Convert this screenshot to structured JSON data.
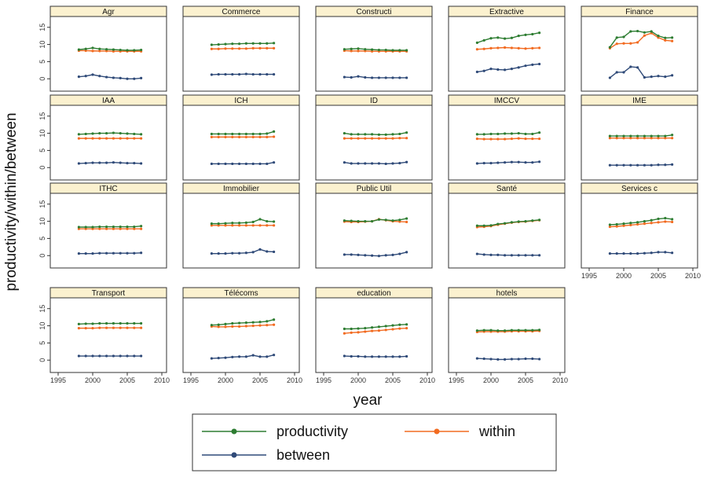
{
  "chart_data": {
    "type": "line",
    "layout": "small-multiples",
    "ylabel": "productivity/within/between",
    "xlabel": "year",
    "xlim": [
      1995,
      2010
    ],
    "ylim": [
      -2,
      17
    ],
    "x_ticks": [
      "1995",
      "2000",
      "2005",
      "2010"
    ],
    "y_ticks": [
      "0",
      "5",
      "10",
      "15"
    ],
    "x": [
      1998,
      1999,
      2000,
      2001,
      2002,
      2003,
      2004,
      2005,
      2006,
      2007
    ],
    "legend": {
      "placement": "bottom",
      "entries": [
        "productivity",
        "within",
        "between"
      ]
    },
    "series_colors": {
      "productivity": "#2e7d32",
      "within": "#f26b21",
      "between": "#2f4a78"
    },
    "colors": {
      "panel_header": "#fbf1cf",
      "panel_border": "#333333"
    },
    "panels": [
      {
        "title": "Agr",
        "productivity": [
          8.5,
          8.7,
          9.0,
          8.7,
          8.6,
          8.5,
          8.4,
          8.3,
          8.3,
          8.4
        ],
        "within": [
          8.2,
          8.2,
          8.1,
          8.1,
          8.1,
          8.0,
          8.0,
          8.0,
          8.0,
          8.0
        ],
        "between": [
          0.6,
          0.8,
          1.2,
          0.8,
          0.5,
          0.3,
          0.2,
          0.0,
          0.0,
          0.2
        ]
      },
      {
        "title": "Commerce",
        "productivity": [
          9.9,
          10.0,
          10.1,
          10.2,
          10.2,
          10.3,
          10.3,
          10.3,
          10.3,
          10.4
        ],
        "within": [
          8.7,
          8.7,
          8.8,
          8.8,
          8.8,
          8.8,
          8.9,
          8.9,
          8.9,
          8.9
        ],
        "between": [
          1.2,
          1.3,
          1.3,
          1.3,
          1.3,
          1.4,
          1.3,
          1.3,
          1.3,
          1.3
        ]
      },
      {
        "title": "Constructi",
        "productivity": [
          8.6,
          8.7,
          8.8,
          8.6,
          8.5,
          8.4,
          8.4,
          8.3,
          8.3,
          8.3
        ],
        "within": [
          8.2,
          8.1,
          8.1,
          8.1,
          8.0,
          8.0,
          8.0,
          8.0,
          8.0,
          8.0
        ],
        "between": [
          0.5,
          0.4,
          0.7,
          0.4,
          0.3,
          0.3,
          0.3,
          0.3,
          0.3,
          0.3
        ]
      },
      {
        "title": "Extractive",
        "productivity": [
          10.5,
          11.2,
          11.8,
          12.0,
          11.7,
          11.9,
          12.5,
          12.8,
          13.0,
          13.4
        ],
        "within": [
          8.6,
          8.7,
          8.9,
          9.0,
          9.1,
          9.0,
          8.9,
          8.8,
          8.9,
          9.0
        ],
        "between": [
          2.0,
          2.3,
          2.9,
          2.7,
          2.6,
          2.9,
          3.3,
          3.8,
          4.1,
          4.3
        ]
      },
      {
        "title": "Finance",
        "productivity": [
          9.2,
          12.0,
          12.2,
          13.8,
          13.9,
          13.5,
          13.8,
          12.5,
          11.9,
          12.0
        ],
        "within": [
          8.9,
          10.2,
          10.3,
          10.3,
          10.6,
          12.6,
          13.3,
          12.0,
          11.2,
          11.0
        ],
        "between": [
          0.3,
          1.9,
          1.9,
          3.5,
          3.3,
          0.4,
          0.6,
          0.8,
          0.6,
          1.0
        ]
      },
      {
        "title": "IAA",
        "productivity": [
          9.7,
          9.8,
          9.9,
          10.0,
          10.0,
          10.1,
          10.0,
          9.9,
          9.8,
          9.7
        ],
        "within": [
          8.5,
          8.5,
          8.5,
          8.5,
          8.5,
          8.5,
          8.5,
          8.5,
          8.5,
          8.5
        ],
        "between": [
          1.2,
          1.3,
          1.4,
          1.4,
          1.4,
          1.5,
          1.4,
          1.3,
          1.3,
          1.2
        ]
      },
      {
        "title": "ICH",
        "productivity": [
          9.8,
          9.8,
          9.8,
          9.8,
          9.8,
          9.8,
          9.8,
          9.8,
          9.9,
          10.5
        ],
        "within": [
          8.9,
          8.9,
          8.9,
          8.9,
          8.9,
          8.9,
          8.9,
          8.9,
          8.9,
          9.0
        ],
        "between": [
          1.1,
          1.1,
          1.1,
          1.1,
          1.1,
          1.1,
          1.1,
          1.1,
          1.1,
          1.5
        ]
      },
      {
        "title": "ID",
        "productivity": [
          10.0,
          9.7,
          9.7,
          9.7,
          9.7,
          9.6,
          9.6,
          9.7,
          9.8,
          10.2
        ],
        "within": [
          8.5,
          8.5,
          8.5,
          8.5,
          8.5,
          8.5,
          8.5,
          8.5,
          8.6,
          8.6
        ],
        "between": [
          1.5,
          1.2,
          1.2,
          1.2,
          1.2,
          1.2,
          1.1,
          1.2,
          1.3,
          1.6
        ]
      },
      {
        "title": "IMCCV",
        "productivity": [
          9.7,
          9.7,
          9.8,
          9.8,
          9.9,
          9.9,
          10.0,
          9.8,
          9.8,
          10.2
        ],
        "within": [
          8.4,
          8.3,
          8.3,
          8.3,
          8.3,
          8.4,
          8.5,
          8.4,
          8.4,
          8.4
        ],
        "between": [
          1.2,
          1.3,
          1.3,
          1.4,
          1.5,
          1.6,
          1.6,
          1.5,
          1.5,
          1.7
        ]
      },
      {
        "title": "IME",
        "productivity": [
          9.2,
          9.2,
          9.2,
          9.2,
          9.2,
          9.2,
          9.2,
          9.2,
          9.2,
          9.5
        ],
        "within": [
          8.6,
          8.6,
          8.6,
          8.6,
          8.6,
          8.6,
          8.6,
          8.6,
          8.6,
          8.6
        ],
        "between": [
          0.7,
          0.7,
          0.7,
          0.7,
          0.7,
          0.7,
          0.7,
          0.8,
          0.8,
          0.9
        ]
      },
      {
        "title": "ITHC",
        "productivity": [
          8.3,
          8.3,
          8.3,
          8.4,
          8.4,
          8.4,
          8.4,
          8.4,
          8.4,
          8.6
        ],
        "within": [
          7.8,
          7.8,
          7.8,
          7.8,
          7.8,
          7.8,
          7.8,
          7.8,
          7.8,
          7.8
        ],
        "between": [
          0.6,
          0.6,
          0.6,
          0.7,
          0.7,
          0.7,
          0.7,
          0.7,
          0.7,
          0.8
        ]
      },
      {
        "title": "Immobilier",
        "productivity": [
          9.3,
          9.3,
          9.4,
          9.5,
          9.5,
          9.6,
          9.8,
          10.6,
          10.0,
          9.9
        ],
        "within": [
          8.8,
          8.8,
          8.8,
          8.8,
          8.8,
          8.8,
          8.8,
          8.8,
          8.8,
          8.8
        ],
        "between": [
          0.6,
          0.6,
          0.6,
          0.7,
          0.7,
          0.8,
          1.0,
          1.8,
          1.2,
          1.1
        ]
      },
      {
        "title": "Public Util",
        "productivity": [
          10.2,
          10.1,
          10.0,
          10.0,
          10.0,
          10.5,
          10.4,
          10.2,
          10.4,
          10.8
        ],
        "within": [
          9.9,
          9.8,
          9.8,
          9.9,
          10.0,
          10.6,
          10.3,
          10.0,
          9.9,
          9.8
        ],
        "between": [
          0.3,
          0.3,
          0.2,
          0.1,
          0.0,
          -0.1,
          0.1,
          0.2,
          0.5,
          1.0
        ]
      },
      {
        "title": "Santé",
        "productivity": [
          8.7,
          8.7,
          8.8,
          9.2,
          9.4,
          9.7,
          9.9,
          10.0,
          10.2,
          10.4
        ],
        "within": [
          8.3,
          8.4,
          8.6,
          9.0,
          9.3,
          9.6,
          9.8,
          9.9,
          10.1,
          10.3
        ],
        "between": [
          0.5,
          0.3,
          0.2,
          0.2,
          0.1,
          0.1,
          0.1,
          0.1,
          0.1,
          0.1
        ]
      },
      {
        "title": "Services c",
        "productivity": [
          9.0,
          9.1,
          9.3,
          9.5,
          9.7,
          10.0,
          10.3,
          10.7,
          10.9,
          10.6
        ],
        "within": [
          8.4,
          8.5,
          8.7,
          8.9,
          9.1,
          9.3,
          9.5,
          9.7,
          9.9,
          9.8
        ],
        "between": [
          0.6,
          0.6,
          0.6,
          0.6,
          0.6,
          0.7,
          0.8,
          1.0,
          1.0,
          0.8
        ]
      },
      {
        "title": "Transport",
        "productivity": [
          10.5,
          10.6,
          10.6,
          10.7,
          10.7,
          10.7,
          10.7,
          10.7,
          10.7,
          10.7
        ],
        "within": [
          9.3,
          9.3,
          9.3,
          9.4,
          9.4,
          9.4,
          9.4,
          9.4,
          9.4,
          9.4
        ],
        "between": [
          1.2,
          1.2,
          1.2,
          1.2,
          1.2,
          1.2,
          1.2,
          1.2,
          1.2,
          1.2
        ]
      },
      {
        "title": "Télécoms",
        "productivity": [
          10.2,
          10.3,
          10.5,
          10.7,
          10.8,
          10.9,
          11.0,
          11.1,
          11.3,
          11.8
        ],
        "within": [
          9.8,
          9.7,
          9.7,
          9.8,
          9.8,
          9.9,
          10.0,
          10.1,
          10.2,
          10.3
        ],
        "between": [
          0.5,
          0.6,
          0.7,
          0.9,
          1.0,
          1.0,
          1.4,
          1.0,
          1.0,
          1.5
        ]
      },
      {
        "title": "education",
        "productivity": [
          9.1,
          9.1,
          9.2,
          9.3,
          9.5,
          9.7,
          9.9,
          10.1,
          10.3,
          10.4
        ],
        "within": [
          7.8,
          8.0,
          8.1,
          8.3,
          8.5,
          8.6,
          8.8,
          9.0,
          9.2,
          9.3
        ],
        "between": [
          1.2,
          1.1,
          1.1,
          1.0,
          1.0,
          1.0,
          1.0,
          1.0,
          1.0,
          1.1
        ]
      },
      {
        "title": "hotels",
        "productivity": [
          8.6,
          8.7,
          8.7,
          8.6,
          8.6,
          8.7,
          8.7,
          8.7,
          8.7,
          8.8
        ],
        "within": [
          8.2,
          8.3,
          8.3,
          8.3,
          8.3,
          8.4,
          8.4,
          8.4,
          8.4,
          8.5
        ],
        "between": [
          0.5,
          0.4,
          0.3,
          0.2,
          0.2,
          0.3,
          0.3,
          0.4,
          0.4,
          0.3
        ]
      }
    ]
  }
}
